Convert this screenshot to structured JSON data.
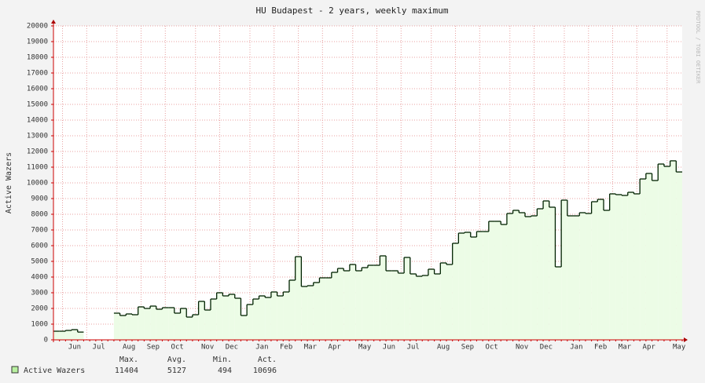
{
  "chart_data": {
    "type": "step",
    "title": "HU Budapest - 2 years, weekly maximum",
    "watermark": "RRDTOOL / TOBI OETIKER",
    "y_label": "Active Wazers",
    "categories": [
      null,
      null,
      null,
      "Jun",
      null,
      null,
      null,
      "Jul",
      null,
      null,
      null,
      null,
      "Aug",
      null,
      null,
      null,
      "Sep",
      null,
      null,
      null,
      "Oct",
      null,
      null,
      null,
      null,
      "Nov",
      null,
      null,
      null,
      "Dec",
      null,
      null,
      null,
      null,
      "Jan",
      null,
      null,
      null,
      "Feb",
      null,
      null,
      null,
      "Mar",
      null,
      null,
      null,
      "Apr",
      null,
      null,
      null,
      null,
      "May",
      null,
      null,
      null,
      "Jun",
      null,
      null,
      null,
      "Jul",
      null,
      null,
      null,
      null,
      "Aug",
      null,
      null,
      null,
      "Sep",
      null,
      null,
      null,
      "Oct",
      null,
      null,
      null,
      null,
      "Nov",
      null,
      null,
      null,
      "Dec",
      null,
      null,
      null,
      null,
      "Jan",
      null,
      null,
      null,
      "Feb",
      null,
      null,
      null,
      "Mar",
      null,
      null,
      null,
      "Apr",
      null,
      null,
      null,
      null,
      "May"
    ],
    "series": [
      {
        "name": "Active Wazers",
        "color": "#002200",
        "fill": "#ecfce6",
        "legend_color": "#b8f0a0",
        "values": [
          550,
          550,
          600,
          650,
          494,
          null,
          null,
          null,
          null,
          null,
          1700,
          1550,
          1650,
          1600,
          2100,
          2000,
          2150,
          1950,
          2050,
          2050,
          1700,
          2000,
          1450,
          1600,
          2450,
          1900,
          2600,
          3000,
          2800,
          2900,
          2650,
          1550,
          2250,
          2600,
          2800,
          2700,
          3050,
          2800,
          3050,
          3800,
          5300,
          3400,
          3450,
          3650,
          3950,
          3950,
          4300,
          4550,
          4400,
          4800,
          4400,
          4600,
          4750,
          4750,
          5350,
          4400,
          4400,
          4250,
          5250,
          4200,
          4050,
          4100,
          4500,
          4200,
          4900,
          4800,
          6150,
          6800,
          6850,
          6550,
          6900,
          6900,
          7550,
          7550,
          7350,
          8050,
          8250,
          8100,
          7850,
          7900,
          8350,
          8850,
          8450,
          4650,
          8900,
          7900,
          7900,
          8100,
          8050,
          8800,
          8950,
          8250,
          9300,
          9250,
          9200,
          9400,
          9300,
          10250,
          10600,
          10150,
          11200,
          11050,
          11404,
          10696
        ]
      }
    ],
    "ylim": [
      0,
      20000
    ],
    "yticks": [
      0,
      1000,
      2000,
      3000,
      4000,
      5000,
      6000,
      7000,
      8000,
      9000,
      10000,
      11000,
      12000,
      13000,
      14000,
      15000,
      16000,
      17000,
      18000,
      19000,
      20000
    ],
    "grid": true,
    "stats": {
      "labels": [
        "Max.",
        "Avg.",
        "Min.",
        "Act."
      ],
      "values": [
        11404,
        5127,
        494,
        10696
      ]
    }
  }
}
